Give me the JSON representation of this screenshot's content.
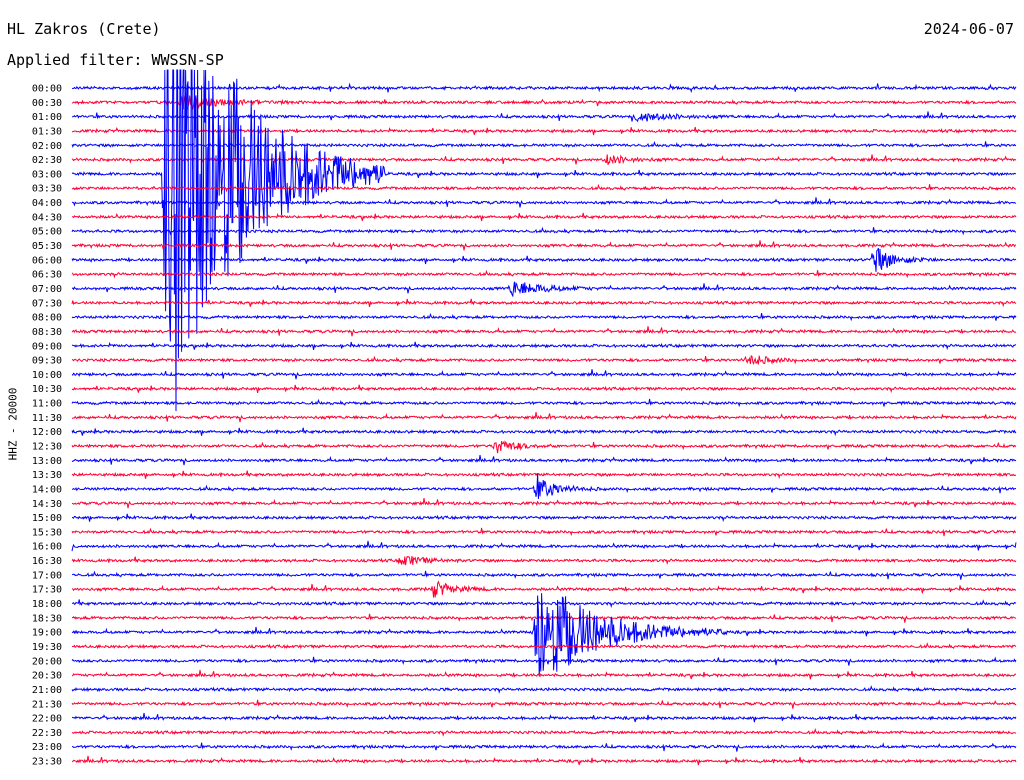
{
  "header": {
    "station": "HL Zakros (Crete)",
    "date": "2024-06-07",
    "filter": "Applied filter: WWSSN-SP"
  },
  "colors": {
    "trace_a": "#0000ff",
    "trace_b": "#ff0033",
    "text": "#000000"
  },
  "chart_data": {
    "type": "line",
    "title": "HL Zakros (Crete)",
    "ylabel": "HHZ - 20000",
    "row_labels": [
      "00:00",
      "00:30",
      "01:00",
      "01:30",
      "02:00",
      "02:30",
      "03:00",
      "03:30",
      "04:00",
      "04:30",
      "05:00",
      "05:30",
      "06:00",
      "06:30",
      "07:00",
      "07:30",
      "08:00",
      "08:30",
      "09:00",
      "09:30",
      "10:00",
      "10:30",
      "11:00",
      "11:30",
      "12:00",
      "12:30",
      "13:00",
      "13:30",
      "14:00",
      "14:30",
      "15:00",
      "15:30",
      "16:00",
      "16:30",
      "17:00",
      "17:30",
      "18:00",
      "18:30",
      "19:00",
      "19:30",
      "20:00",
      "20:30",
      "21:00",
      "21:30",
      "22:00",
      "22:30",
      "23:00",
      "23:30"
    ],
    "row_colors": [
      "blue",
      "red"
    ],
    "row_minutes": 30,
    "events": [
      {
        "row": 1,
        "minute": 3.5,
        "amp": 7,
        "dur": 4
      },
      {
        "row": 2,
        "minute": 18,
        "amp": 5,
        "dur": 3
      },
      {
        "row": 5,
        "minute": 17,
        "amp": 5,
        "dur": 2
      },
      {
        "row": 6,
        "minute": 3.0,
        "amp": 300,
        "dur": 7
      },
      {
        "row": 12,
        "minute": 25.5,
        "amp": 14,
        "dur": 2
      },
      {
        "row": 14,
        "minute": 14,
        "amp": 8,
        "dur": 3
      },
      {
        "row": 19,
        "minute": 21.5,
        "amp": 6,
        "dur": 2
      },
      {
        "row": 25,
        "minute": 13.5,
        "amp": 7,
        "dur": 2
      },
      {
        "row": 28,
        "minute": 14.8,
        "amp": 12,
        "dur": 2
      },
      {
        "row": 33,
        "minute": 10.5,
        "amp": 6,
        "dur": 2
      },
      {
        "row": 35,
        "minute": 11.5,
        "amp": 8,
        "dur": 2
      },
      {
        "row": 38,
        "minute": 14.8,
        "amp": 60,
        "dur": 6
      }
    ]
  }
}
